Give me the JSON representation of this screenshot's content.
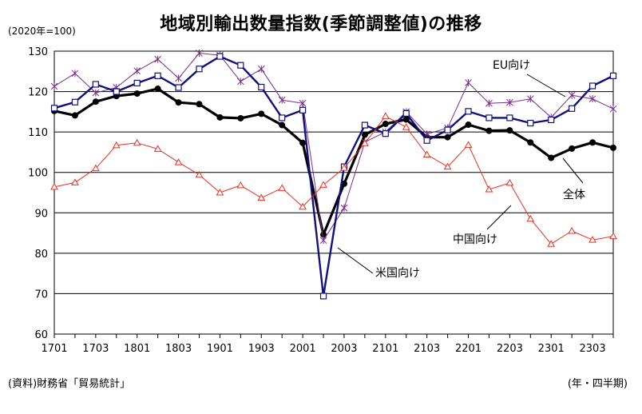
{
  "chart_data": {
    "type": "line",
    "title": "地域別輸出数量指数(季節調整値)の推移",
    "unit_label": "(2020年=100)",
    "source": "(資料)財務省「貿易統計」",
    "period_label": "(年・四半期)",
    "ylim": [
      60,
      130
    ],
    "yticks": [
      "60",
      "70",
      "80",
      "90",
      "100",
      "110",
      "120",
      "130"
    ],
    "xtick_labels": [
      "1701",
      "1703",
      "1801",
      "1803",
      "1901",
      "1903",
      "2001",
      "2003",
      "2101",
      "2103",
      "2201",
      "2203",
      "2301",
      "2303"
    ],
    "x": [
      "1701",
      "1702",
      "1703",
      "1704",
      "1801",
      "1802",
      "1803",
      "1804",
      "1901",
      "1902",
      "1903",
      "1904",
      "2001",
      "2002",
      "2003",
      "2004",
      "2101",
      "2102",
      "2103",
      "2104",
      "2201",
      "2202",
      "2203",
      "2204",
      "2301",
      "2302",
      "2303",
      "2304"
    ],
    "grid": "horizontal",
    "series": [
      {
        "name": "全体",
        "color": "#000000",
        "marker": "filled-circle",
        "values": [
          115.2,
          114.1,
          117.5,
          118.9,
          119.5,
          120.7,
          117.3,
          116.9,
          113.6,
          113.4,
          114.5,
          111.7,
          107.3,
          84.6,
          97.2,
          109.3,
          112.0,
          113.1,
          108.7,
          108.7,
          111.8,
          110.3,
          110.4,
          107.4,
          103.6,
          105.9,
          107.4,
          106.1
        ]
      },
      {
        "name": "EU向け",
        "color": "#7b2d8e",
        "marker": "star",
        "values": [
          121.3,
          124.5,
          119.7,
          121.0,
          125.1,
          128.0,
          123.3,
          129.5,
          129.0,
          122.5,
          125.6,
          117.9,
          117.1,
          83.2,
          91.2,
          107.5,
          110.0,
          115.0,
          109.5,
          111.0,
          122.2,
          117.1,
          117.3,
          118.2,
          113.6,
          119.1,
          118.2,
          115.7
        ]
      },
      {
        "name": "米国向け",
        "color": "#10107f",
        "marker": "open-square",
        "values": [
          115.9,
          117.4,
          121.8,
          120.0,
          122.1,
          123.9,
          121.0,
          125.6,
          128.7,
          126.5,
          121.1,
          113.5,
          115.4,
          69.4,
          101.4,
          111.7,
          109.6,
          114.6,
          107.9,
          110.5,
          115.1,
          113.5,
          113.5,
          112.2,
          113.0,
          115.8,
          121.4,
          123.9
        ]
      },
      {
        "name": "中国向け",
        "color": "#e83020",
        "marker": "open-triangle",
        "values": [
          96.4,
          97.5,
          101.0,
          106.7,
          107.3,
          105.8,
          102.5,
          99.4,
          95.0,
          96.8,
          93.7,
          96.1,
          91.5,
          96.9,
          101.1,
          107.2,
          113.9,
          111.2,
          104.4,
          101.4,
          106.8,
          95.8,
          97.4,
          88.5,
          82.3,
          85.5,
          83.3,
          84.2
        ]
      }
    ],
    "annotations": {
      "eu": "EU向け",
      "total": "全体",
      "china": "中国向け",
      "us": "米国向け"
    }
  }
}
